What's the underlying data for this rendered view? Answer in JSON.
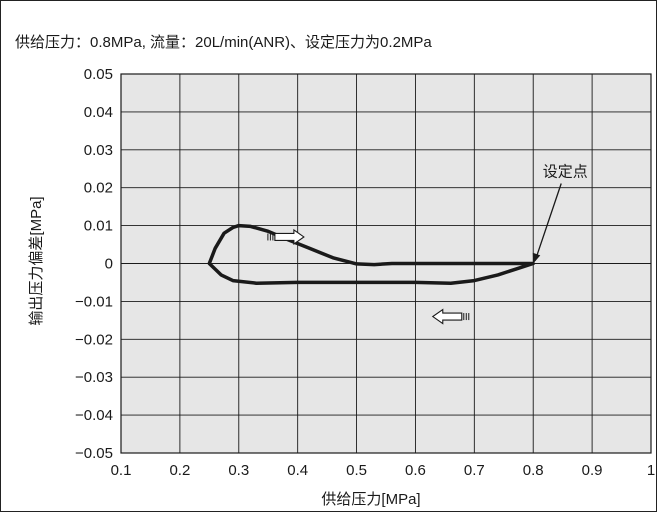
{
  "chart_data": {
    "type": "line",
    "title": "供给压力：0.8MPa, 流量：20L/min(ANR)、设定压力为0.2MPa",
    "xlabel": "供给压力[MPa]",
    "ylabel": "输出压力偏差[MPa]",
    "xlim": [
      0.1,
      1.0
    ],
    "ylim": [
      -0.05,
      0.05
    ],
    "x_ticks": [
      "0.1",
      "0.2",
      "0.3",
      "0.4",
      "0.5",
      "0.6",
      "0.7",
      "0.8",
      "0.9",
      "1"
    ],
    "y_ticks": [
      "0.05",
      "0.04",
      "0.03",
      "0.02",
      "0.01",
      "0",
      "−0.01",
      "−0.02",
      "−0.03",
      "−0.04",
      "−0.05"
    ],
    "grid": true,
    "legend": "none",
    "colors": {
      "plot_background": "#e6e6e6",
      "grid": "#1a1a1a",
      "curve": "#1a1a1a"
    },
    "series": [
      {
        "values": [
          [
            0.8,
            0.0
          ],
          [
            0.7,
            0.0
          ],
          [
            0.6,
            0.0
          ],
          [
            0.56,
            0.0
          ],
          [
            0.53,
            -0.0003
          ],
          [
            0.5,
            -0.0001
          ],
          [
            0.46,
            0.0015
          ],
          [
            0.42,
            0.004
          ],
          [
            0.38,
            0.0065
          ],
          [
            0.35,
            0.0085
          ],
          [
            0.32,
            0.0098
          ],
          [
            0.3,
            0.01
          ],
          [
            0.29,
            0.0095
          ],
          [
            0.275,
            0.008
          ],
          [
            0.26,
            0.004
          ],
          [
            0.25,
            0.0
          ],
          [
            0.27,
            -0.003
          ],
          [
            0.29,
            -0.0045
          ],
          [
            0.33,
            -0.0052
          ],
          [
            0.4,
            -0.005
          ],
          [
            0.5,
            -0.005
          ],
          [
            0.6,
            -0.005
          ],
          [
            0.66,
            -0.0052
          ],
          [
            0.7,
            -0.0045
          ],
          [
            0.74,
            -0.003
          ],
          [
            0.77,
            -0.0015
          ],
          [
            0.8,
            0.0
          ]
        ]
      }
    ],
    "annotations": [
      {
        "text": "设定点",
        "x": 0.8,
        "y": 0.0
      }
    ],
    "arrows": [
      {
        "direction": "right",
        "x": 0.38,
        "y": 0.007
      },
      {
        "direction": "left",
        "x": 0.66,
        "y": -0.014
      }
    ]
  }
}
